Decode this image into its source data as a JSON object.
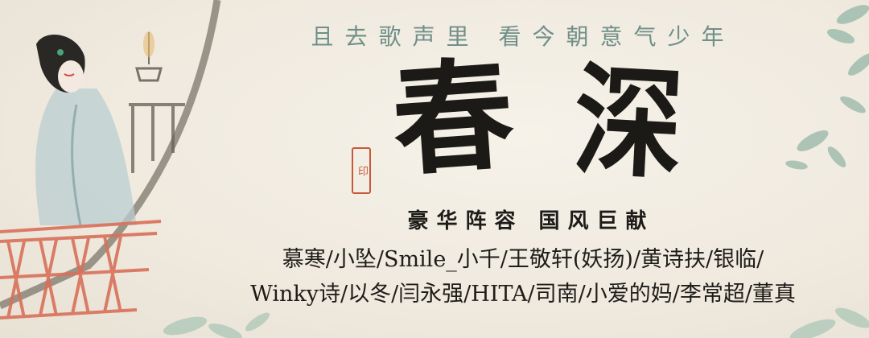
{
  "slogan": "且去歌声里  看今朝意气少年",
  "title": [
    "春",
    "深"
  ],
  "seal_text": "印",
  "subtitle": "豪华阵容   国风巨献",
  "cast_lines": [
    "慕寒/小坠/Smile_小千/王敬轩(妖扬)/黄诗扶/银临/",
    "Winky诗/以冬/闫永强/HITA/司南/小爱的妈/李常超/董真"
  ],
  "colors": {
    "background": "#f2ede3",
    "slogan": "#6f8f88",
    "ink": "#1c1a17",
    "seal": "#c9583a",
    "railing": "#d9705a",
    "foliage": "#8fb3a4"
  }
}
